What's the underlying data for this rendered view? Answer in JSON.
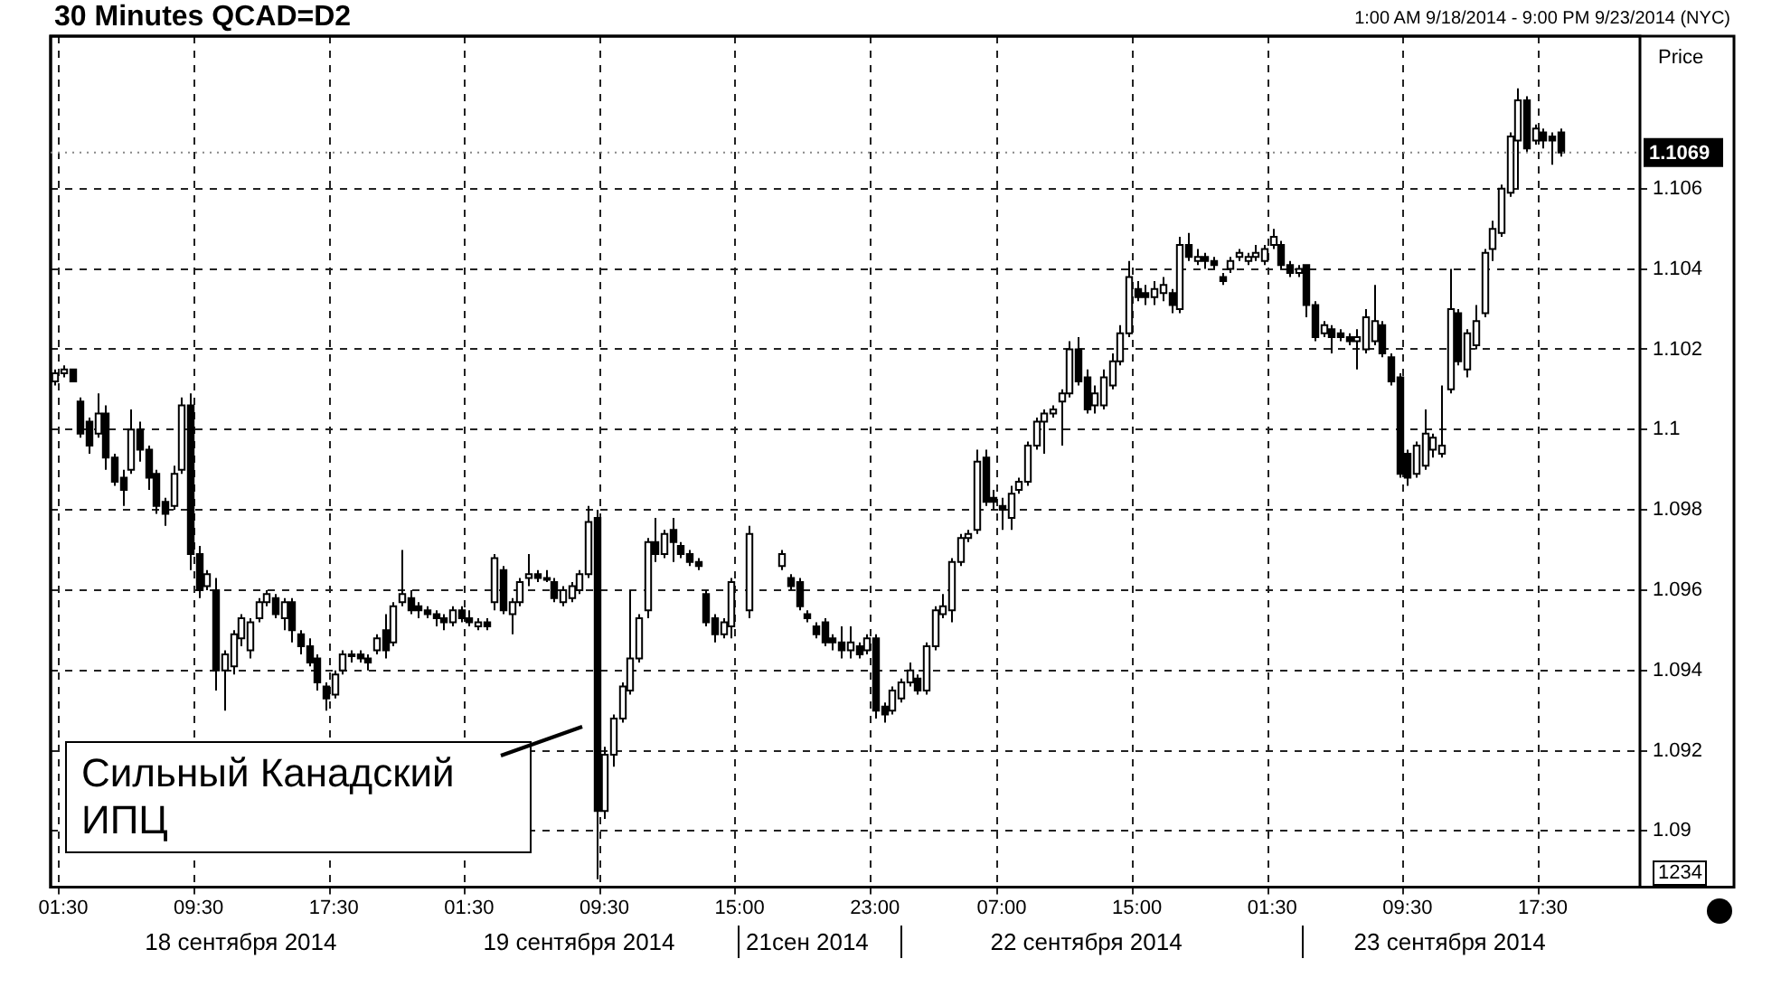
{
  "chart_data": {
    "type": "candlestick",
    "title": "30 Minutes QCAD=D2",
    "subtitle": "1:00 AM 9/18/2014 - 9:00 PM 9/23/2014 (NYC)",
    "ylabel": "Price",
    "color": "#000000",
    "grid": true,
    "legend": false,
    "ylim": [
      1.0886,
      1.1098
    ],
    "yticks": [
      1.09,
      1.092,
      1.094,
      1.096,
      1.098,
      1.1,
      1.102,
      1.104,
      1.106
    ],
    "ref_lines": [
      {
        "axis": "y",
        "value": 1.1069,
        "label": "1.1069"
      }
    ],
    "annotations": [
      "Сильный Канадский ИПЦ",
      "18 сентября 2014",
      "19 сентября 2014",
      "21сен 2014",
      "22 сентября 2014",
      "23 сентября 2014",
      "1234"
    ],
    "categories": [
      null,
      "01:30",
      null,
      null,
      null,
      null,
      null,
      null,
      null,
      null,
      null,
      null,
      null,
      null,
      null,
      null,
      null,
      "09:30",
      null,
      null,
      null,
      null,
      null,
      null,
      null,
      null,
      null,
      null,
      null,
      null,
      null,
      null,
      null,
      "17:30",
      null,
      null,
      null,
      null,
      null,
      null,
      null,
      null,
      null,
      null,
      null,
      null,
      null,
      null,
      null,
      "01:30",
      null,
      null,
      null,
      null,
      null,
      null,
      null,
      null,
      null,
      null,
      null,
      null,
      null,
      null,
      null,
      "09:30",
      null,
      null,
      null,
      null,
      null,
      null,
      null,
      null,
      null,
      null,
      null,
      null,
      null,
      null,
      null,
      "15:00",
      null,
      null,
      null,
      null,
      null,
      null,
      null,
      null,
      null,
      null,
      null,
      null,
      null,
      null,
      null,
      "23:00",
      null,
      null,
      null,
      null,
      null,
      null,
      null,
      null,
      null,
      null,
      null,
      null,
      null,
      null,
      "07:00",
      null,
      null,
      null,
      null,
      null,
      null,
      null,
      null,
      null,
      null,
      null,
      null,
      null,
      null,
      null,
      "15:00",
      null,
      null,
      null,
      null,
      null,
      null,
      null,
      null,
      null,
      null,
      null,
      null,
      null,
      null,
      null,
      "01:30",
      null,
      null,
      null,
      null,
      null,
      null,
      null,
      null,
      null,
      null,
      null,
      null,
      null,
      null,
      null,
      "09:30",
      null,
      null,
      null,
      null,
      null,
      null,
      null,
      null,
      null,
      null,
      null,
      null,
      null,
      null,
      null,
      "17:30",
      null,
      null,
      null,
      null,
      null,
      null,
      null,
      null,
      null,
      null,
      null
    ],
    "ohlc": [
      [
        1.1012,
        1.1015,
        1.1011,
        1.1014
      ],
      [
        1.1014,
        1.1016,
        1.1013,
        1.1015
      ],
      [
        1.1015,
        1.1015,
        1.1012,
        1.1012
      ],
      [
        1.1007,
        1.1008,
        1.0998,
        1.0999
      ],
      [
        1.1002,
        1.1003,
        1.0994,
        1.0996
      ],
      [
        1.0999,
        1.1009,
        1.0998,
        1.1004
      ],
      [
        1.1004,
        1.1006,
        1.099,
        1.0993
      ],
      [
        1.0993,
        1.0994,
        1.0986,
        1.0987
      ],
      [
        1.0988,
        1.099,
        1.0981,
        1.0985
      ],
      [
        1.099,
        1.1005,
        1.0989,
        1.1
      ],
      [
        1.1,
        1.1002,
        1.0992,
        1.0995
      ],
      [
        1.0995,
        1.0996,
        1.0985,
        1.0988
      ],
      [
        1.0989,
        1.099,
        1.0979,
        1.0981
      ],
      [
        1.0982,
        1.0983,
        1.0976,
        1.0979
      ],
      [
        1.0981,
        1.0991,
        1.098,
        1.0989
      ],
      [
        1.099,
        1.1008,
        1.0989,
        1.1006
      ],
      [
        1.1006,
        1.1009,
        1.0965,
        1.0969
      ],
      [
        1.0969,
        1.0971,
        1.0958,
        1.096
      ],
      [
        1.0961,
        1.0965,
        1.096,
        1.0964
      ],
      [
        1.096,
        1.0963,
        1.0935,
        1.094
      ],
      [
        1.094,
        1.0945,
        1.093,
        1.0944
      ],
      [
        1.0941,
        1.095,
        1.0939,
        1.0949
      ],
      [
        1.0948,
        1.0954,
        1.0946,
        1.0953
      ],
      [
        1.0945,
        1.0953,
        1.0943,
        1.0952
      ],
      [
        1.0953,
        1.0958,
        1.0952,
        1.0957
      ],
      [
        1.0957,
        1.096,
        1.0956,
        1.0959
      ],
      [
        1.0958,
        1.0959,
        1.0953,
        1.0954
      ],
      [
        1.0953,
        1.0958,
        1.095,
        1.0957
      ],
      [
        1.0957,
        1.0958,
        1.0947,
        1.095
      ],
      [
        1.0949,
        1.095,
        1.0944,
        1.0946
      ],
      [
        1.0946,
        1.0948,
        1.0941,
        1.0942
      ],
      [
        1.0943,
        1.0944,
        1.0935,
        1.0937
      ],
      [
        1.0936,
        1.0937,
        1.093,
        1.0933
      ],
      [
        1.0934,
        1.094,
        1.0933,
        1.0939
      ],
      [
        1.094,
        1.0945,
        1.0939,
        1.0944
      ],
      [
        1.0944,
        1.0945,
        1.0942,
        1.0944
      ],
      [
        1.0944,
        1.0945,
        1.0942,
        1.0943
      ],
      [
        1.0943,
        1.0944,
        1.094,
        1.0942
      ],
      [
        1.0945,
        1.0949,
        1.0944,
        1.0948
      ],
      [
        1.095,
        1.0954,
        1.0943,
        1.0945
      ],
      [
        1.0947,
        1.0957,
        1.0946,
        1.0956
      ],
      [
        1.0957,
        1.097,
        1.0956,
        1.0959
      ],
      [
        1.0958,
        1.096,
        1.0954,
        1.0955
      ],
      [
        1.0956,
        1.0957,
        1.0953,
        1.0955
      ],
      [
        1.0955,
        1.0956,
        1.0953,
        1.0954
      ],
      [
        1.0954,
        1.0955,
        1.0951,
        1.0953
      ],
      [
        1.0953,
        1.0954,
        1.095,
        1.0952
      ],
      [
        1.0952,
        1.0956,
        1.0951,
        1.0955
      ],
      [
        1.0955,
        1.0956,
        1.0952,
        1.0953
      ],
      [
        1.0953,
        1.0955,
        1.0951,
        1.0952
      ],
      [
        1.0951,
        1.0953,
        1.095,
        1.0952
      ],
      [
        1.0952,
        1.0953,
        1.095,
        1.0951
      ],
      [
        1.0957,
        1.0969,
        1.0955,
        1.0968
      ],
      [
        1.0965,
        1.0966,
        1.0954,
        1.0955
      ],
      [
        1.0954,
        1.0958,
        1.0949,
        1.0957
      ],
      [
        1.0957,
        1.0963,
        1.0956,
        1.0962
      ],
      [
        1.0963,
        1.0969,
        1.0961,
        1.0964
      ],
      [
        1.0964,
        1.0965,
        1.0962,
        1.0963
      ],
      [
        1.0963,
        1.0965,
        1.0962,
        1.0963
      ],
      [
        1.0962,
        1.0963,
        1.0957,
        1.0958
      ],
      [
        1.0957,
        1.0961,
        1.0956,
        1.096
      ],
      [
        1.0958,
        1.0962,
        1.0957,
        1.0961
      ],
      [
        1.096,
        1.0965,
        1.0959,
        1.0964
      ],
      [
        1.0964,
        1.0981,
        1.0963,
        1.0977
      ],
      [
        1.0978,
        1.098,
        1.0888,
        1.0905
      ],
      [
        1.0905,
        1.0921,
        1.0903,
        1.0919
      ],
      [
        1.0919,
        1.0929,
        1.0916,
        1.0928
      ],
      [
        1.0928,
        1.0937,
        1.0927,
        1.0936
      ],
      [
        1.0935,
        1.096,
        1.0934,
        1.0943
      ],
      [
        1.0943,
        1.0954,
        1.0942,
        1.0953
      ],
      [
        1.0955,
        1.0973,
        1.0953,
        1.0972
      ],
      [
        1.0972,
        1.0978,
        1.0967,
        1.0969
      ],
      [
        1.0969,
        1.0975,
        1.0968,
        1.0974
      ],
      [
        1.0975,
        1.0978,
        1.0967,
        1.0972
      ],
      [
        1.0971,
        1.0972,
        1.0968,
        1.0969
      ],
      [
        1.0969,
        1.097,
        1.0966,
        1.0967
      ],
      [
        1.0967,
        1.0968,
        1.0965,
        1.0966
      ],
      [
        1.0959,
        1.096,
        1.0951,
        1.0952
      ],
      [
        1.0953,
        1.0954,
        1.0947,
        1.0949
      ],
      [
        1.0949,
        1.0953,
        1.0948,
        1.0952
      ],
      [
        1.0951,
        1.0963,
        1.0948,
        1.0962
      ],
      null,
      [
        1.0955,
        1.0976,
        1.0953,
        1.0974
      ],
      null,
      null,
      null,
      [
        1.0966,
        1.097,
        1.0965,
        1.0969
      ],
      [
        1.0963,
        1.0964,
        1.096,
        1.0961
      ],
      [
        1.0962,
        1.0963,
        1.0955,
        1.0956
      ],
      [
        1.0954,
        1.0955,
        1.0952,
        1.0953
      ],
      [
        1.0951,
        1.0952,
        1.0948,
        1.0949
      ],
      [
        1.0952,
        1.0953,
        1.0946,
        1.0947
      ],
      [
        1.0948,
        1.0949,
        1.0945,
        1.0947
      ],
      [
        1.0947,
        1.0951,
        1.0943,
        1.0945
      ],
      [
        1.0945,
        1.0951,
        1.0943,
        1.0947
      ],
      [
        1.0946,
        1.0947,
        1.0943,
        1.0944
      ],
      [
        1.0945,
        1.0949,
        1.0944,
        1.0948
      ],
      [
        1.0948,
        1.0949,
        1.0928,
        1.093
      ],
      [
        1.0931,
        1.0932,
        1.0927,
        1.0929
      ],
      [
        1.093,
        1.0936,
        1.0929,
        1.0935
      ],
      [
        1.0933,
        1.0938,
        1.0932,
        1.0937
      ],
      [
        1.0937,
        1.0942,
        1.0936,
        1.094
      ],
      [
        1.0938,
        1.0939,
        1.0934,
        1.0935
      ],
      [
        1.0935,
        1.0947,
        1.0934,
        1.0946
      ],
      [
        1.0946,
        1.0956,
        1.0945,
        1.0955
      ],
      [
        1.0954,
        1.0959,
        1.0953,
        1.0956
      ],
      [
        1.0955,
        1.0968,
        1.0952,
        1.0967
      ],
      [
        1.0967,
        1.0974,
        1.0966,
        1.0973
      ],
      [
        1.0973,
        1.0975,
        1.0972,
        1.0974
      ],
      [
        1.0975,
        1.0995,
        1.0974,
        1.0992
      ],
      [
        1.0993,
        1.0995,
        1.0981,
        1.0982
      ],
      [
        1.0983,
        1.0985,
        1.098,
        1.0982
      ],
      [
        1.0981,
        1.0983,
        1.0975,
        1.098
      ],
      [
        1.0978,
        1.0986,
        1.0975,
        1.0984
      ],
      [
        1.0985,
        1.0988,
        1.0984,
        1.0987
      ],
      [
        1.0987,
        1.0997,
        1.0986,
        1.0996
      ],
      [
        1.0996,
        1.1003,
        1.0995,
        1.1002
      ],
      [
        1.1002,
        1.1005,
        1.0994,
        1.1004
      ],
      [
        1.1004,
        1.1006,
        1.1003,
        1.1005
      ],
      [
        1.1007,
        1.101,
        1.0996,
        1.1009
      ],
      [
        1.1009,
        1.1022,
        1.1008,
        1.102
      ],
      [
        1.102,
        1.1023,
        1.1011,
        1.1012
      ],
      [
        1.1013,
        1.1015,
        1.1004,
        1.1005
      ],
      [
        1.1006,
        1.1011,
        1.1004,
        1.1009
      ],
      [
        1.1006,
        1.1015,
        1.1005,
        1.1013
      ],
      [
        1.1011,
        1.1019,
        1.101,
        1.1017
      ],
      [
        1.1017,
        1.1026,
        1.1016,
        1.1024
      ],
      [
        1.1024,
        1.1042,
        1.1023,
        1.1038
      ],
      [
        1.1035,
        1.1037,
        1.1032,
        1.1033
      ],
      [
        1.1034,
        1.1036,
        1.1031,
        1.1033
      ],
      [
        1.1033,
        1.1037,
        1.1031,
        1.1035
      ],
      [
        1.1034,
        1.1038,
        1.1032,
        1.1036
      ],
      [
        1.1034,
        1.1035,
        1.1029,
        1.1031
      ],
      [
        1.103,
        1.1048,
        1.1029,
        1.1046
      ],
      [
        1.1046,
        1.1049,
        1.1042,
        1.1043
      ],
      [
        1.1042,
        1.1045,
        1.1041,
        1.1043
      ],
      [
        1.1043,
        1.1044,
        1.104,
        1.1042
      ],
      [
        1.1042,
        1.1043,
        1.104,
        1.1041
      ],
      [
        1.1038,
        1.1039,
        1.1036,
        1.1037
      ],
      [
        1.104,
        1.1043,
        1.1039,
        1.1042
      ],
      [
        1.1043,
        1.1045,
        1.1042,
        1.1044
      ],
      [
        1.1042,
        1.1044,
        1.1041,
        1.1043
      ],
      [
        1.1043,
        1.1046,
        1.1042,
        1.1044
      ],
      [
        1.1042,
        1.1046,
        1.1041,
        1.1045
      ],
      [
        1.1046,
        1.105,
        1.1045,
        1.1048
      ],
      [
        1.1046,
        1.1047,
        1.104,
        1.1041
      ],
      [
        1.1041,
        1.1042,
        1.1038,
        1.1039
      ],
      [
        1.1039,
        1.1041,
        1.1038,
        1.104
      ],
      [
        1.1041,
        1.1041,
        1.1028,
        1.1031
      ],
      [
        1.1031,
        1.1032,
        1.1022,
        1.1023
      ],
      [
        1.1024,
        1.1027,
        1.1023,
        1.1026
      ],
      [
        1.1025,
        1.1026,
        1.1019,
        1.1023
      ],
      [
        1.1024,
        1.1025,
        1.1022,
        1.1023
      ],
      [
        1.1023,
        1.1024,
        1.1021,
        1.1022
      ],
      [
        1.1022,
        1.1025,
        1.1015,
        1.1023
      ],
      [
        1.102,
        1.103,
        1.1019,
        1.1028
      ],
      [
        1.1022,
        1.1036,
        1.1021,
        1.1027
      ],
      [
        1.1026,
        1.1027,
        1.1018,
        1.1019
      ],
      [
        1.1018,
        1.1019,
        1.1011,
        1.1012
      ],
      [
        1.1013,
        1.1014,
        1.0988,
        1.0989
      ],
      [
        1.0994,
        1.0995,
        1.0986,
        1.0988
      ],
      [
        1.0989,
        1.0997,
        1.0988,
        1.0996
      ],
      [
        1.0991,
        1.1005,
        1.099,
        1.0999
      ],
      [
        1.0995,
        1.0999,
        1.0993,
        1.0998
      ],
      [
        1.0994,
        1.1011,
        1.0993,
        1.0996
      ],
      [
        1.101,
        1.104,
        1.1009,
        1.103
      ],
      [
        1.1029,
        1.103,
        1.1016,
        1.1017
      ],
      [
        1.1015,
        1.1025,
        1.1013,
        1.1024
      ],
      [
        1.1021,
        1.1031,
        1.102,
        1.1027
      ],
      [
        1.1029,
        1.1045,
        1.1028,
        1.1044
      ],
      [
        1.1045,
        1.1052,
        1.1042,
        1.105
      ],
      [
        1.1049,
        1.1061,
        1.1048,
        1.106
      ],
      [
        1.1059,
        1.1074,
        1.1058,
        1.1073
      ],
      [
        1.1072,
        1.1085,
        1.106,
        1.1082
      ],
      [
        1.1082,
        1.1083,
        1.1069,
        1.107
      ],
      [
        1.1072,
        1.1076,
        1.1071,
        1.1075
      ],
      [
        1.1074,
        1.1075,
        1.107,
        1.1072
      ],
      [
        1.1073,
        1.1074,
        1.1066,
        1.1072
      ],
      [
        1.1074,
        1.1075,
        1.1068,
        1.1069
      ],
      null,
      null,
      null,
      null,
      null,
      null,
      null,
      null,
      null
    ]
  }
}
